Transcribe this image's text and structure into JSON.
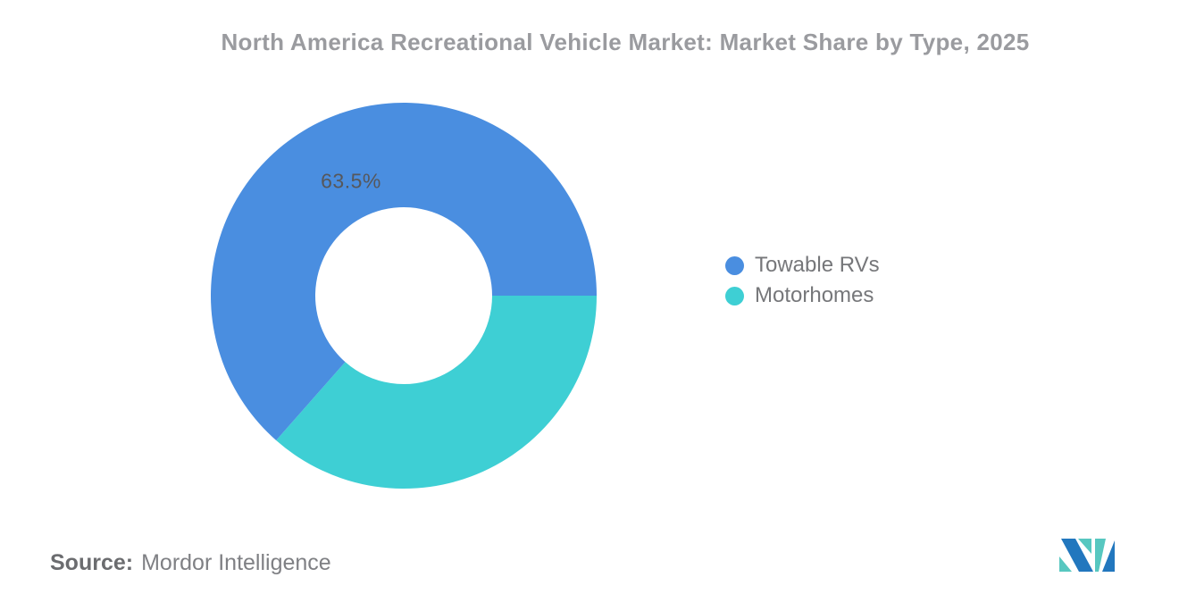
{
  "title": "North America Recreational Vehicle Market: Market Share by Type, 2025",
  "chart_data": {
    "type": "pie",
    "subtype": "donut",
    "title": "North America Recreational Vehicle Market: Market Share by Type, 2025",
    "labels": [
      "Towable RVs",
      "Motorhomes"
    ],
    "values": [
      63.5,
      36.5
    ],
    "unit": "%",
    "colors": [
      "#4a8ee0",
      "#3ecfd4"
    ],
    "shown_data_labels": [
      "63.5%"
    ],
    "legend_position": "right",
    "hole_radius_ratio": 0.46,
    "start_position": "3-oclock",
    "direction": "clockwise"
  },
  "legend": {
    "items": [
      {
        "label": "Towable RVs",
        "color": "#4a8ee0"
      },
      {
        "label": "Motorhomes",
        "color": "#3ecfd4"
      }
    ]
  },
  "source": {
    "label": "Source:",
    "value": "Mordor Intelligence"
  },
  "logo": {
    "name": "Mordor Intelligence",
    "teal": "#57c7c0",
    "blue": "#2277be"
  }
}
